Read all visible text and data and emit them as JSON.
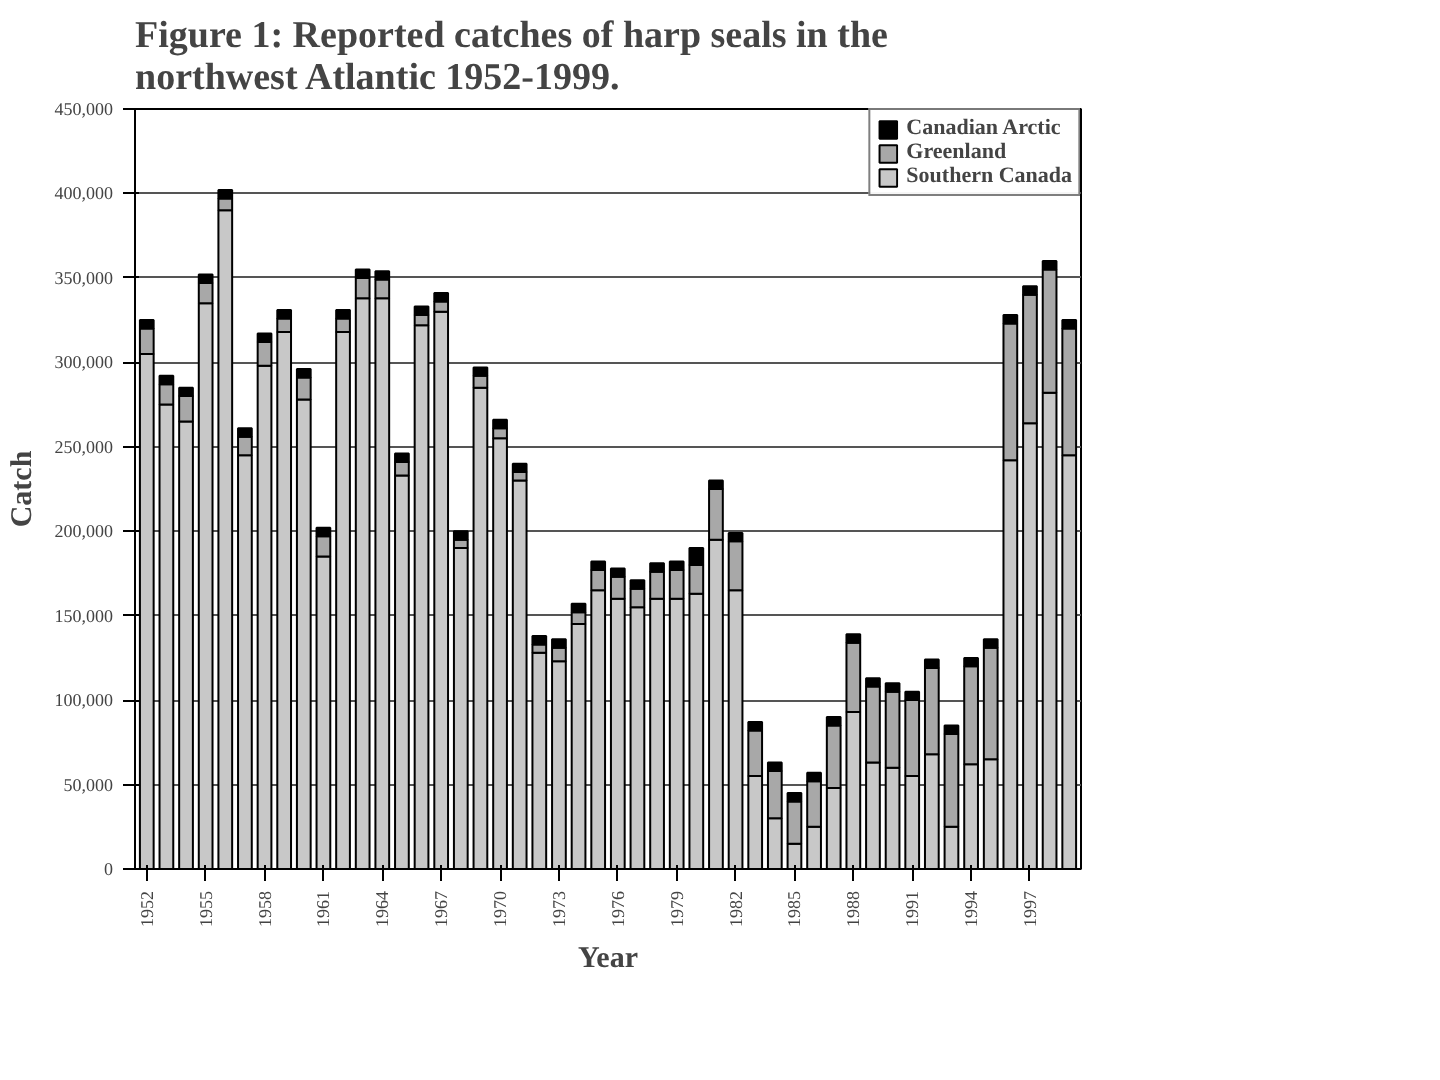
{
  "chart_data": {
    "type": "bar",
    "stacked": true,
    "title": "Figure 1: Reported catches of harp seals in the northwest Atlantic 1952-1999.",
    "xlabel": "Year",
    "ylabel": "Catch",
    "x": [
      1952,
      1953,
      1954,
      1955,
      1956,
      1957,
      1958,
      1959,
      1960,
      1961,
      1962,
      1963,
      1964,
      1965,
      1966,
      1967,
      1968,
      1969,
      1970,
      1971,
      1972,
      1973,
      1974,
      1975,
      1976,
      1977,
      1978,
      1979,
      1980,
      1981,
      1982,
      1983,
      1984,
      1985,
      1986,
      1987,
      1988,
      1989,
      1990,
      1991,
      1992,
      1993,
      1994,
      1995,
      1996,
      1997,
      1998,
      1999
    ],
    "series": [
      {
        "name": "Southern Canada",
        "color": "#c8c8c8",
        "values": [
          305000,
          275000,
          265000,
          335000,
          390000,
          245000,
          298000,
          318000,
          278000,
          185000,
          318000,
          338000,
          338000,
          233000,
          322000,
          330000,
          190000,
          285000,
          255000,
          230000,
          128000,
          123000,
          145000,
          165000,
          160000,
          155000,
          160000,
          160000,
          163000,
          195000,
          165000,
          55000,
          30000,
          15000,
          25000,
          48000,
          93000,
          63000,
          60000,
          55000,
          68000,
          25000,
          62000,
          65000,
          242000,
          264000,
          282000,
          245000
        ]
      },
      {
        "name": "Greenland",
        "color": "#a8a8a8",
        "values": [
          15000,
          12000,
          15000,
          12000,
          7000,
          11000,
          14000,
          8000,
          13000,
          12000,
          8000,
          12000,
          11000,
          8000,
          6000,
          6000,
          5000,
          7000,
          6000,
          5000,
          5000,
          8000,
          7000,
          12000,
          13000,
          11000,
          16000,
          17000,
          17000,
          30000,
          29000,
          27000,
          28000,
          25000,
          27000,
          37000,
          41000,
          45000,
          45000,
          45000,
          51000,
          55000,
          58000,
          66000,
          81000,
          76000,
          73000,
          75000
        ]
      },
      {
        "name": "Canadian Arctic",
        "color": "#000000",
        "values": [
          5000,
          5000,
          5000,
          5000,
          5000,
          5000,
          5000,
          5000,
          5000,
          5000,
          5000,
          5000,
          5000,
          5000,
          5000,
          5000,
          5000,
          5000,
          5000,
          5000,
          5000,
          5000,
          5000,
          5000,
          5000,
          5000,
          5000,
          5000,
          10000,
          5000,
          5000,
          5000,
          5000,
          5000,
          5000,
          5000,
          5000,
          5000,
          5000,
          5000,
          5000,
          5000,
          5000,
          5000,
          5000,
          5000,
          5000,
          5000
        ]
      }
    ],
    "xlim": [
      1951.4,
      1999.6
    ],
    "xticks": [
      1952,
      1955,
      1958,
      1961,
      1964,
      1967,
      1970,
      1973,
      1976,
      1979,
      1982,
      1985,
      1988,
      1991,
      1994,
      1997
    ],
    "ylim": [
      0,
      450000
    ],
    "yticks": [
      0,
      {
        "value": 50000,
        "label": "50,000"
      },
      {
        "value": 100000,
        "label": "100,000"
      },
      {
        "value": 150000,
        "label": "150,000"
      },
      {
        "value": 200000,
        "label": "200,000"
      },
      {
        "value": 250000,
        "label": "250,000"
      },
      {
        "value": 300000,
        "label": "300,000"
      },
      {
        "value": 350000,
        "label": "350,000"
      },
      {
        "value": 400000,
        "label": "400,000"
      },
      {
        "value": 450000,
        "label": "450,000"
      }
    ],
    "grid": "y",
    "legend": "top right"
  }
}
